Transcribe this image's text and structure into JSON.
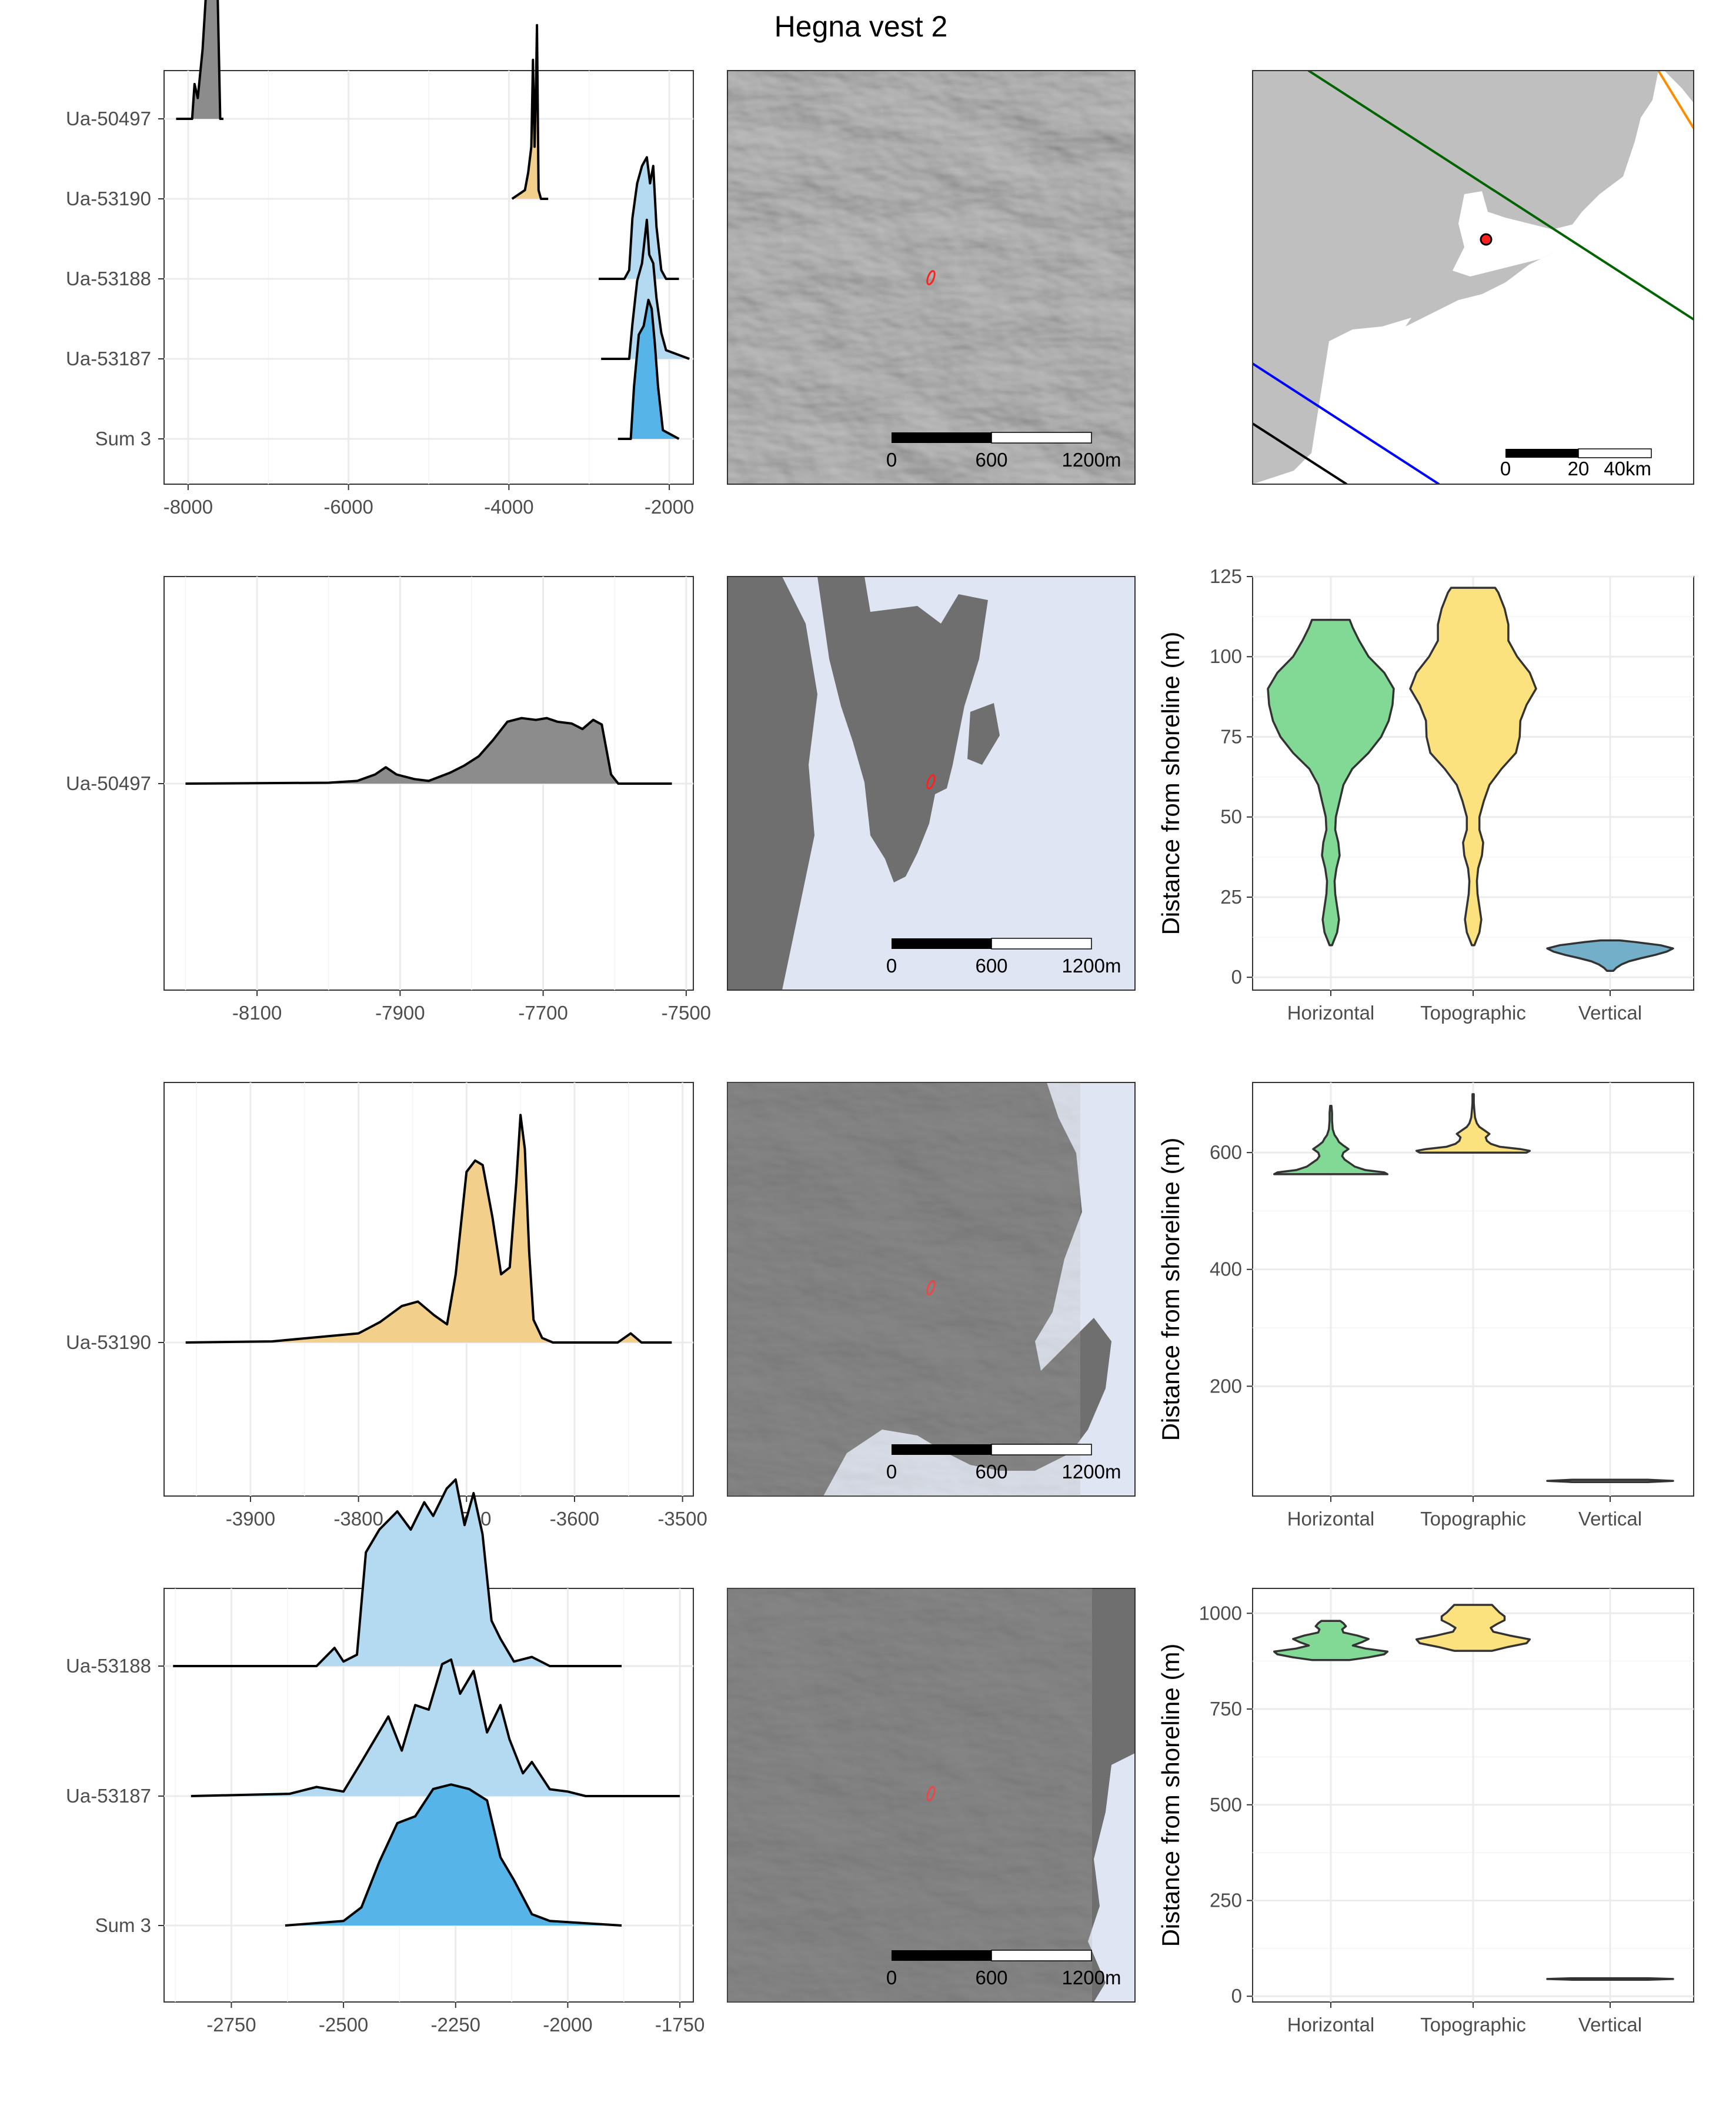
{
  "figure": {
    "title": "Hegna vest 2"
  },
  "colors": {
    "grey_fill": "#8c8c8c",
    "orange_fill": "#f3cf8c",
    "light_blue_fill": "#b3daf0",
    "blue_fill": "#56b4e9",
    "horizontal": "#82d996",
    "topographic": "#fbe27f",
    "vertical": "#73afc9",
    "sea": "#dfe5f2",
    "land": "#6f6f6f",
    "overview_land": "#bfbfbf"
  },
  "chart_data": [
    {
      "id": "density-overview",
      "type": "area",
      "title": "",
      "xlabel": "",
      "ylabel": "",
      "xlim": [
        -8300,
        -1700
      ],
      "xticks": [
        -8000,
        -6000,
        -4000,
        -2000
      ],
      "categories": [
        "Ua-50497",
        "Ua-53190",
        "Ua-53188",
        "Ua-53187",
        "Sum 3"
      ],
      "series": [
        {
          "name": "Ua-50497",
          "fill": "grey",
          "x": [
            -8150,
            -7950,
            -7920,
            -7880,
            -7820,
            -7760,
            -7740,
            -7700,
            -7660,
            -7640,
            -7600,
            -7560
          ],
          "y": [
            0,
            0,
            0.2,
            0.12,
            0.4,
            0.85,
            0.95,
            0.92,
            0.98,
            0.9,
            0,
            0
          ]
        },
        {
          "name": "Ua-53190",
          "fill": "orange",
          "x": [
            -3960,
            -3800,
            -3760,
            -3720,
            -3700,
            -3680,
            -3660,
            -3650,
            -3630,
            -3600,
            -3510
          ],
          "y": [
            0,
            0.05,
            0.15,
            0.3,
            0.8,
            0.3,
            0.7,
            1.0,
            0.05,
            0,
            0
          ]
        },
        {
          "name": "Ua-53188",
          "fill": "light_blue",
          "x": [
            -2880,
            -2560,
            -2500,
            -2460,
            -2400,
            -2340,
            -2280,
            -2240,
            -2200,
            -2160,
            -2100,
            -2040,
            -1880
          ],
          "y": [
            0,
            0,
            0.05,
            0.35,
            0.55,
            0.65,
            0.7,
            0.55,
            0.65,
            0.3,
            0.05,
            0,
            0
          ]
        },
        {
          "name": "Ua-53187",
          "fill": "light_blue",
          "x": [
            -2850,
            -2500,
            -2460,
            -2400,
            -2340,
            -2280,
            -2250,
            -2200,
            -2160,
            -2100,
            -2040,
            -1750
          ],
          "y": [
            0,
            0,
            0.2,
            0.45,
            0.55,
            0.8,
            0.6,
            0.55,
            0.35,
            0.15,
            0.05,
            0
          ]
        },
        {
          "name": "Sum 3",
          "fill": "blue",
          "x": [
            -2640,
            -2480,
            -2440,
            -2380,
            -2320,
            -2260,
            -2220,
            -2180,
            -2140,
            -2080,
            -1880
          ],
          "y": [
            0,
            0,
            0.3,
            0.6,
            0.65,
            0.8,
            0.75,
            0.55,
            0.3,
            0.05,
            0
          ]
        }
      ]
    },
    {
      "id": "density-ua50497",
      "type": "area",
      "title": "",
      "xlabel": "",
      "ylabel": "",
      "xlim": [
        -8230,
        -7490
      ],
      "xticks": [
        -8100,
        -7900,
        -7700,
        -7500
      ],
      "categories": [
        "Ua-50497"
      ],
      "series": [
        {
          "name": "Ua-50497",
          "fill": "grey",
          "x": [
            -8200,
            -8000,
            -7960,
            -7935,
            -7920,
            -7905,
            -7880,
            -7860,
            -7830,
            -7810,
            -7790,
            -7770,
            -7750,
            -7730,
            -7710,
            -7695,
            -7680,
            -7660,
            -7645,
            -7630,
            -7618,
            -7605,
            -7595,
            -7520
          ],
          "y": [
            0,
            0.01,
            0.03,
            0.1,
            0.18,
            0.1,
            0.05,
            0.03,
            0.12,
            0.2,
            0.3,
            0.48,
            0.68,
            0.72,
            0.7,
            0.72,
            0.68,
            0.66,
            0.6,
            0.7,
            0.65,
            0.1,
            0,
            0
          ]
        }
      ]
    },
    {
      "id": "density-ua53190",
      "type": "area",
      "title": "",
      "xlabel": "",
      "ylabel": "",
      "xlim": [
        -3980,
        -3490
      ],
      "xticks": [
        -3900,
        -3800,
        -3700,
        -3600,
        -3500
      ],
      "categories": [
        "Ua-53190"
      ],
      "series": [
        {
          "name": "Ua-53190",
          "fill": "orange",
          "x": [
            -3960,
            -3880,
            -3800,
            -3780,
            -3760,
            -3745,
            -3730,
            -3718,
            -3710,
            -3700,
            -3692,
            -3685,
            -3676,
            -3668,
            -3660,
            -3654,
            -3650,
            -3646,
            -3642,
            -3638,
            -3630,
            -3620,
            -3560,
            -3548,
            -3538,
            -3510
          ],
          "y": [
            0,
            0.005,
            0.04,
            0.09,
            0.16,
            0.18,
            0.12,
            0.08,
            0.3,
            0.75,
            0.8,
            0.78,
            0.55,
            0.3,
            0.33,
            0.7,
            1.0,
            0.85,
            0.4,
            0.1,
            0.02,
            0,
            0,
            0.04,
            0,
            0
          ]
        }
      ]
    },
    {
      "id": "density-group",
      "type": "area",
      "title": "",
      "xlabel": "",
      "ylabel": "",
      "xlim": [
        -2900,
        -1720
      ],
      "xticks": [
        -2750,
        -2500,
        -2250,
        -2000,
        -1750
      ],
      "categories": [
        "Ua-53188",
        "Ua-53187",
        "Sum 3"
      ],
      "series": [
        {
          "name": "Ua-53188",
          "fill": "light_blue",
          "x": [
            -2880,
            -2560,
            -2520,
            -2500,
            -2470,
            -2450,
            -2420,
            -2380,
            -2350,
            -2320,
            -2300,
            -2270,
            -2250,
            -2230,
            -2210,
            -2190,
            -2170,
            -2150,
            -2120,
            -2080,
            -2040,
            -1880
          ],
          "y": [
            0,
            0,
            0.08,
            0.02,
            0.05,
            0.5,
            0.6,
            0.68,
            0.6,
            0.72,
            0.66,
            0.78,
            0.82,
            0.62,
            0.76,
            0.58,
            0.2,
            0.12,
            0.02,
            0.04,
            0,
            0
          ]
        },
        {
          "name": "Ua-53187",
          "fill": "light_blue",
          "x": [
            -2840,
            -2620,
            -2560,
            -2500,
            -2460,
            -2430,
            -2400,
            -2370,
            -2340,
            -2310,
            -2280,
            -2260,
            -2240,
            -2210,
            -2180,
            -2150,
            -2130,
            -2100,
            -2080,
            -2040,
            -2000,
            -1960,
            -1750
          ],
          "y": [
            0,
            0.01,
            0.04,
            0.02,
            0.15,
            0.25,
            0.35,
            0.2,
            0.4,
            0.38,
            0.58,
            0.6,
            0.45,
            0.55,
            0.28,
            0.4,
            0.25,
            0.1,
            0.15,
            0.03,
            0.02,
            0,
            0
          ]
        },
        {
          "name": "Sum 3",
          "fill": "blue",
          "x": [
            -2630,
            -2500,
            -2460,
            -2420,
            -2380,
            -2340,
            -2300,
            -2260,
            -2220,
            -2180,
            -2150,
            -2120,
            -2080,
            -2040,
            -1880
          ],
          "y": [
            0,
            0.02,
            0.08,
            0.28,
            0.45,
            0.48,
            0.6,
            0.62,
            0.6,
            0.55,
            0.3,
            0.2,
            0.05,
            0.02,
            0
          ]
        }
      ]
    },
    {
      "id": "violin-shoreline-1",
      "type": "violin",
      "title": "",
      "xlabel": "",
      "ylabel": "Distance from shoreline (m)",
      "ylim": [
        -4,
        125
      ],
      "yticks": [
        0,
        25,
        50,
        75,
        100,
        125
      ],
      "categories": [
        "Horizontal",
        "Topographic",
        "Vertical"
      ],
      "series": [
        {
          "name": "Horizontal",
          "color": "horizontal",
          "y": [
            10,
            14,
            18,
            22,
            26,
            30,
            34,
            38,
            42,
            46,
            50,
            55,
            60,
            65,
            70,
            75,
            80,
            85,
            90,
            95,
            100,
            105,
            109,
            111.5
          ],
          "w": [
            0.02,
            0.1,
            0.13,
            0.1,
            0.07,
            0.06,
            0.09,
            0.14,
            0.12,
            0.07,
            0.08,
            0.14,
            0.2,
            0.34,
            0.6,
            0.8,
            0.92,
            0.98,
            1.0,
            0.85,
            0.6,
            0.45,
            0.35,
            0.3
          ]
        },
        {
          "name": "Topographic",
          "color": "topographic",
          "y": [
            10,
            14,
            18,
            22,
            26,
            30,
            34,
            38,
            42,
            46,
            50,
            55,
            60,
            65,
            70,
            75,
            80,
            85,
            90,
            95,
            100,
            105,
            110,
            115,
            120,
            121.5
          ],
          "w": [
            0.02,
            0.1,
            0.13,
            0.1,
            0.07,
            0.06,
            0.08,
            0.14,
            0.16,
            0.1,
            0.1,
            0.17,
            0.26,
            0.45,
            0.68,
            0.74,
            0.75,
            0.85,
            1.0,
            0.9,
            0.7,
            0.56,
            0.56,
            0.5,
            0.4,
            0.35
          ]
        },
        {
          "name": "Vertical",
          "color": "vertical",
          "y": [
            2,
            3,
            4,
            5,
            6,
            7,
            8,
            9,
            10,
            11,
            11.5
          ],
          "w": [
            0.05,
            0.1,
            0.18,
            0.3,
            0.5,
            0.72,
            0.9,
            1.0,
            0.8,
            0.4,
            0.15
          ]
        }
      ]
    },
    {
      "id": "violin-shoreline-2",
      "type": "violin",
      "title": "",
      "xlabel": "",
      "ylabel": "Distance from shoreline (m)",
      "ylim": [
        12,
        720
      ],
      "yticks": [
        200,
        400,
        600
      ],
      "categories": [
        "Horizontal",
        "Topographic",
        "Vertical"
      ],
      "series": [
        {
          "name": "Horizontal",
          "color": "horizontal",
          "y": [
            563,
            566,
            570,
            576,
            582,
            588,
            594,
            600,
            606,
            612,
            618,
            624,
            630,
            640,
            655,
            668,
            680
          ],
          "w": [
            0.9,
            0.85,
            0.55,
            0.38,
            0.3,
            0.22,
            0.18,
            0.2,
            0.28,
            0.2,
            0.13,
            0.1,
            0.06,
            0.03,
            0.02,
            0.02,
            0.01
          ]
        },
        {
          "name": "Topographic",
          "color": "topographic",
          "y": [
            600,
            603,
            606,
            610,
            615,
            620,
            626,
            632,
            638,
            644,
            650,
            660,
            672,
            685,
            700
          ],
          "w": [
            0.85,
            0.9,
            0.75,
            0.42,
            0.28,
            0.22,
            0.2,
            0.26,
            0.18,
            0.1,
            0.06,
            0.03,
            0.02,
            0.01,
            0.01
          ]
        },
        {
          "name": "Vertical",
          "color": "vertical",
          "y": [
            36,
            38,
            40
          ],
          "w": [
            0.6,
            1.0,
            0.6
          ]
        }
      ]
    },
    {
      "id": "violin-shoreline-3",
      "type": "violin",
      "title": "",
      "xlabel": "",
      "ylabel": "Distance from shoreline (m)",
      "ylim": [
        -15,
        1065
      ],
      "yticks": [
        0,
        250,
        500,
        750,
        1000
      ],
      "categories": [
        "Horizontal",
        "Topographic",
        "Vertical"
      ],
      "series": [
        {
          "name": "Horizontal",
          "color": "horizontal",
          "y": [
            878,
            885,
            893,
            900,
            908,
            916,
            925,
            933,
            942,
            950,
            958,
            966,
            974,
            980
          ],
          "w": [
            0.3,
            0.6,
            0.85,
            0.9,
            0.55,
            0.35,
            0.5,
            0.6,
            0.42,
            0.2,
            0.18,
            0.24,
            0.2,
            0.15
          ]
        },
        {
          "name": "Topographic",
          "color": "topographic",
          "y": [
            902,
            912,
            922,
            932,
            942,
            952,
            962,
            972,
            982,
            992,
            1002,
            1012,
            1022
          ],
          "w": [
            0.3,
            0.55,
            0.85,
            0.9,
            0.58,
            0.32,
            0.28,
            0.38,
            0.5,
            0.5,
            0.42,
            0.36,
            0.3
          ]
        },
        {
          "name": "Vertical",
          "color": "vertical",
          "y": [
            43,
            45,
            47
          ],
          "w": [
            0.6,
            1.0,
            0.6
          ]
        }
      ]
    }
  ],
  "maps": {
    "scalebar_labels": [
      "0",
      "600",
      "1200m"
    ],
    "overview_scalebar_labels": [
      "0",
      "20",
      "40km"
    ]
  }
}
